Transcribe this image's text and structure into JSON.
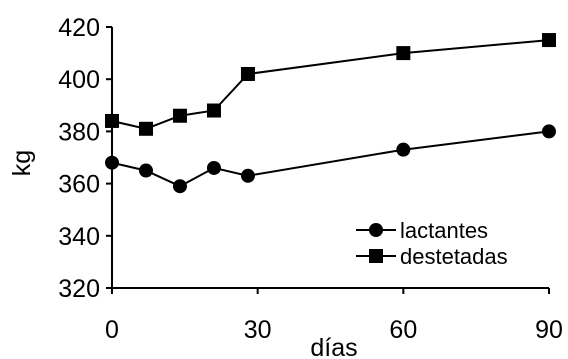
{
  "chart_data": {
    "type": "line",
    "xlabel": "días",
    "ylabel": "kg",
    "xlim": [
      0,
      90
    ],
    "ylim": [
      320,
      420
    ],
    "xticks": [
      0,
      30,
      60,
      90
    ],
    "yticks": [
      320,
      340,
      360,
      380,
      400,
      420
    ],
    "grid": false,
    "legend_position": "bottom-right",
    "series": [
      {
        "name": "lactantes",
        "marker": "circle",
        "x": [
          0,
          7,
          14,
          21,
          28,
          60,
          90
        ],
        "y": [
          368,
          365,
          359,
          366,
          363,
          373,
          380
        ]
      },
      {
        "name": "destetadas",
        "marker": "square",
        "x": [
          0,
          7,
          14,
          21,
          28,
          60,
          90
        ],
        "y": [
          384,
          381,
          386,
          388,
          402,
          410,
          415
        ]
      }
    ]
  }
}
